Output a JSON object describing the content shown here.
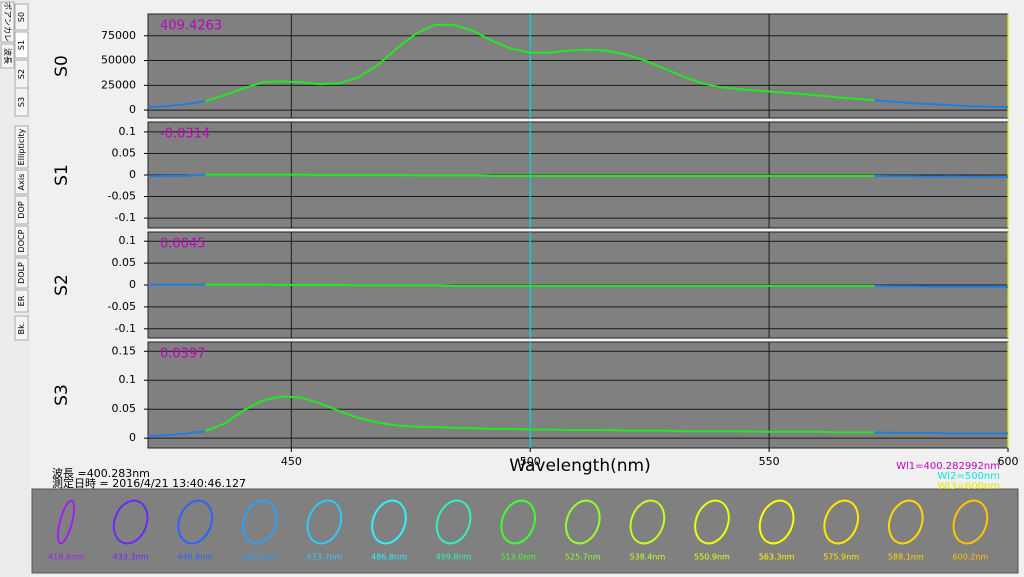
{
  "tabs": [
    "波長",
    "ポアンカレ",
    "S0",
    "S1",
    "S2",
    "S3",
    "Ellipticity",
    "Axis",
    "DOP",
    "DOCP",
    "DOLP",
    "ER",
    "Bk."
  ],
  "chart_data": [
    {
      "type": "line",
      "ylabel": "S0",
      "annotation": "409.4263",
      "grid": true,
      "xlim": [
        420,
        600
      ],
      "ylim": [
        -8000,
        97000
      ],
      "yticks": [
        0,
        25000,
        50000,
        75000
      ],
      "x": [
        420,
        424,
        428,
        432,
        436,
        440,
        444,
        448,
        452,
        456,
        460,
        464,
        468,
        472,
        476,
        480,
        484,
        488,
        492,
        496,
        500,
        504,
        508,
        512,
        516,
        520,
        524,
        528,
        532,
        536,
        540,
        544,
        548,
        552,
        556,
        560,
        564,
        568,
        572,
        576,
        580,
        584,
        588,
        592,
        596,
        600
      ],
      "series": [
        {
          "color": "#1e7fe0",
          "values": [
            3000,
            4000,
            6000,
            9000,
            null,
            null,
            null,
            null,
            null,
            null,
            null,
            null,
            null,
            null,
            null,
            null,
            null,
            null,
            null,
            null,
            null,
            null,
            null,
            null,
            null,
            null,
            null,
            null,
            null,
            null,
            null,
            null,
            null,
            null,
            null,
            null,
            null,
            null,
            10000,
            8500,
            7000,
            6000,
            5000,
            4000,
            3500,
            3000
          ]
        },
        {
          "color": "#22e822",
          "values": [
            null,
            null,
            null,
            9000,
            15000,
            22000,
            28000,
            29000,
            28000,
            26000,
            27000,
            33000,
            45000,
            62000,
            77000,
            86000,
            86000,
            80000,
            70000,
            62000,
            58000,
            58000,
            60000,
            61000,
            60000,
            56000,
            50000,
            42000,
            34000,
            27000,
            23000,
            21000,
            19500,
            18000,
            16500,
            15000,
            13000,
            11500,
            10000,
            null,
            null,
            null,
            null,
            null,
            null,
            null
          ]
        }
      ]
    },
    {
      "type": "line",
      "ylabel": "S1",
      "annotation": "-0.0314",
      "grid": true,
      "xlim": [
        420,
        600
      ],
      "ylim": [
        -0.123,
        0.123
      ],
      "yticks": [
        -0.1,
        -0.05,
        0,
        0.05,
        0.1
      ],
      "x": [
        420,
        424,
        428,
        432,
        436,
        440,
        444,
        448,
        452,
        456,
        460,
        464,
        468,
        472,
        476,
        480,
        484,
        488,
        492,
        496,
        500,
        504,
        508,
        512,
        516,
        520,
        524,
        528,
        532,
        536,
        540,
        544,
        548,
        552,
        556,
        560,
        564,
        568,
        572,
        576,
        580,
        584,
        588,
        592,
        596,
        600
      ],
      "series": [
        {
          "color": "#1e7fe0",
          "values": [
            -0.003,
            -0.002,
            -0.002,
            0.001,
            null,
            null,
            null,
            null,
            null,
            null,
            null,
            null,
            null,
            null,
            null,
            null,
            null,
            null,
            null,
            null,
            null,
            null,
            null,
            null,
            null,
            null,
            null,
            null,
            null,
            null,
            null,
            null,
            null,
            null,
            null,
            null,
            null,
            null,
            -0.002,
            -0.003,
            -0.003,
            -0.004,
            -0.003,
            -0.004,
            -0.004,
            -0.005
          ]
        },
        {
          "color": "#22e822",
          "values": [
            null,
            null,
            null,
            0.001,
            0.001,
            0.001,
            0.001,
            0.001,
            0.001,
            0,
            0,
            0,
            0,
            0,
            -0.001,
            -0.001,
            -0.001,
            -0.001,
            -0.002,
            -0.002,
            -0.002,
            -0.002,
            -0.002,
            -0.002,
            -0.002,
            -0.002,
            -0.002,
            -0.002,
            -0.002,
            -0.002,
            -0.002,
            -0.002,
            -0.002,
            -0.002,
            -0.002,
            -0.002,
            -0.002,
            -0.002,
            -0.002,
            null,
            null,
            null,
            null,
            null,
            null,
            null
          ]
        }
      ]
    },
    {
      "type": "line",
      "ylabel": "S2",
      "annotation": "0.0045",
      "grid": true,
      "xlim": [
        420,
        600
      ],
      "ylim": [
        -0.121,
        0.121
      ],
      "yticks": [
        -0.1,
        -0.05,
        0,
        0.05,
        0.1
      ],
      "x": [
        420,
        424,
        428,
        432,
        436,
        440,
        444,
        448,
        452,
        456,
        460,
        464,
        468,
        472,
        476,
        480,
        484,
        488,
        492,
        496,
        500,
        504,
        508,
        512,
        516,
        520,
        524,
        528,
        532,
        536,
        540,
        544,
        548,
        552,
        556,
        560,
        564,
        568,
        572,
        576,
        580,
        584,
        588,
        592,
        596,
        600
      ],
      "series": [
        {
          "color": "#1e7fe0",
          "values": [
            0.001,
            0.001,
            0.001,
            0.001,
            null,
            null,
            null,
            null,
            null,
            null,
            null,
            null,
            null,
            null,
            null,
            null,
            null,
            null,
            null,
            null,
            null,
            null,
            null,
            null,
            null,
            null,
            null,
            null,
            null,
            null,
            null,
            null,
            null,
            null,
            null,
            null,
            null,
            null,
            -0.002,
            -0.003,
            -0.003,
            -0.004,
            -0.004,
            -0.004,
            -0.004,
            -0.005
          ]
        },
        {
          "color": "#22e822",
          "values": [
            null,
            null,
            null,
            0.001,
            0.001,
            0.001,
            0.001,
            0,
            0,
            0,
            0,
            -0.001,
            -0.001,
            -0.001,
            -0.001,
            -0.001,
            -0.002,
            -0.002,
            -0.002,
            -0.002,
            -0.002,
            -0.002,
            -0.002,
            -0.002,
            -0.002,
            -0.002,
            -0.002,
            -0.002,
            -0.002,
            -0.002,
            -0.002,
            -0.002,
            -0.002,
            -0.002,
            -0.002,
            -0.002,
            -0.002,
            -0.002,
            -0.002,
            null,
            null,
            null,
            null,
            null,
            null,
            null
          ]
        }
      ]
    },
    {
      "type": "line",
      "ylabel": "S3",
      "annotation": "0.0397",
      "grid": true,
      "xlim": [
        420,
        600
      ],
      "ylim": [
        -0.017,
        0.166
      ],
      "yticks": [
        0,
        0.05,
        0.1,
        0.15
      ],
      "xticks": [
        450,
        500,
        550,
        600
      ],
      "xlabel": "Wavelength(nm)",
      "x": [
        420,
        424,
        428,
        432,
        436,
        440,
        444,
        448,
        452,
        456,
        460,
        464,
        468,
        472,
        476,
        480,
        484,
        488,
        492,
        496,
        500,
        504,
        508,
        512,
        516,
        520,
        524,
        528,
        532,
        536,
        540,
        544,
        548,
        552,
        556,
        560,
        564,
        568,
        572,
        576,
        580,
        584,
        588,
        592,
        596,
        600
      ],
      "series": [
        {
          "color": "#1e7fe0",
          "values": [
            0.004,
            0.005,
            0.008,
            0.012,
            null,
            null,
            null,
            null,
            null,
            null,
            null,
            null,
            null,
            null,
            null,
            null,
            null,
            null,
            null,
            null,
            null,
            null,
            null,
            null,
            null,
            null,
            null,
            null,
            null,
            null,
            null,
            null,
            null,
            null,
            null,
            null,
            null,
            null,
            0.01,
            0.009,
            0.009,
            0.009,
            0.008,
            0.008,
            0.008,
            0.008
          ]
        },
        {
          "color": "#22e822",
          "values": [
            null,
            null,
            null,
            0.012,
            0.025,
            0.048,
            0.065,
            0.072,
            0.07,
            0.06,
            0.047,
            0.035,
            0.027,
            0.022,
            0.02,
            0.019,
            0.018,
            0.017,
            0.016,
            0.016,
            0.015,
            0.015,
            0.014,
            0.014,
            0.014,
            0.013,
            0.013,
            0.013,
            0.012,
            0.012,
            0.012,
            0.012,
            0.011,
            0.011,
            0.011,
            0.011,
            0.01,
            0.01,
            0.01,
            null,
            null,
            null,
            null,
            null,
            null,
            null
          ]
        }
      ]
    }
  ],
  "cursors": [
    {
      "label": "Wl1=400.282992nm",
      "value": 400.282992,
      "color": "#c000c0"
    },
    {
      "label": "Wl2=500nm",
      "value": 500,
      "color": "#00e8e8"
    },
    {
      "label": "Wl3=600nm",
      "value": 600,
      "color": "#e8e800"
    }
  ],
  "status": {
    "wavelength": "波長 =400.283nm",
    "timestamp": "測定日時 = 2016/4/21 13:40:46.127"
  },
  "ellipses": [
    {
      "label": "418.8nm",
      "color": "#a020f0"
    },
    {
      "label": "433.3nm",
      "color": "#6a28ff"
    },
    {
      "label": "446.8nm",
      "color": "#3060ff"
    },
    {
      "label": "460.2nm",
      "color": "#2aa0ff"
    },
    {
      "label": "473.7nm",
      "color": "#30c8ff"
    },
    {
      "label": "486.8nm",
      "color": "#30f0ff"
    },
    {
      "label": "499.8nm",
      "color": "#30f0c0"
    },
    {
      "label": "513.0nm",
      "color": "#40ff30"
    },
    {
      "label": "525.7nm",
      "color": "#90ff30"
    },
    {
      "label": "538.4nm",
      "color": "#c0ff20"
    },
    {
      "label": "550.9nm",
      "color": "#e8ff10"
    },
    {
      "label": "563.3nm",
      "color": "#ffff00"
    },
    {
      "label": "575.9nm",
      "color": "#ffe800"
    },
    {
      "label": "588.1nm",
      "color": "#ffd800"
    },
    {
      "label": "600.2nm",
      "color": "#ffc400"
    }
  ]
}
